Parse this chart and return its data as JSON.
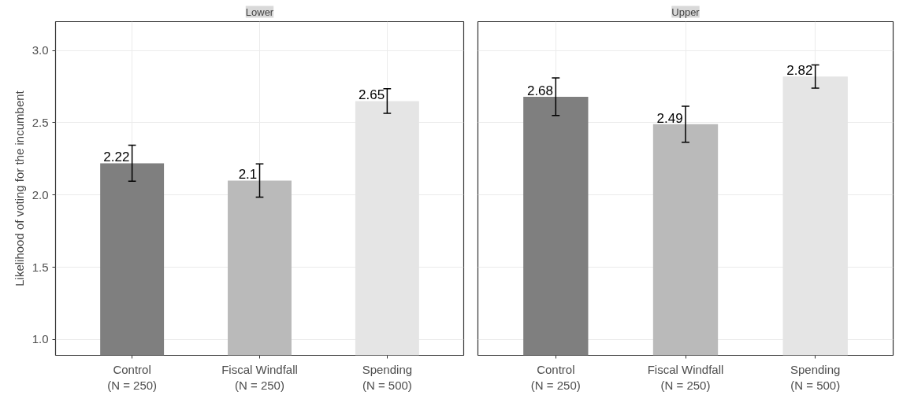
{
  "chart_data": [
    {
      "type": "bar",
      "title": "Lower",
      "ylabel": "Likelihood of voting for the incumbent",
      "categories": [
        "Control\n(N = 250)",
        "Fiscal Windfall\n(N = 250)",
        "Spending\n(N = 500)"
      ],
      "values": [
        2.22,
        2.1,
        2.65
      ],
      "errors": [
        0.125,
        0.115,
        0.085
      ],
      "colors": [
        "#7f7f7f",
        "#bababa",
        "#e5e5e5"
      ],
      "ylim": [
        0.89,
        3.2
      ],
      "yticks": [
        {
          "value": 1,
          "label": "1.0"
        },
        {
          "value": 1.5,
          "label": "1.5"
        },
        {
          "value": 2,
          "label": "2.0"
        },
        {
          "value": 2.5,
          "label": "2.5"
        },
        {
          "value": 3,
          "label": "3.0"
        }
      ],
      "grid": true,
      "data_labels": true
    },
    {
      "type": "bar",
      "title": "Upper",
      "categories": [
        "Control\n(N = 250)",
        "Fiscal Windfall\n(N = 250)",
        "Spending\n(N = 500)"
      ],
      "values": [
        2.68,
        2.49,
        2.82
      ],
      "errors": [
        0.13,
        0.125,
        0.08
      ],
      "colors": [
        "#7f7f7f",
        "#bababa",
        "#e5e5e5"
      ],
      "ylim": [
        0.89,
        3.2
      ],
      "yticks": [
        1,
        1.5,
        2,
        2.5,
        3
      ],
      "grid": true,
      "data_labels": true,
      "tick_labels": "x"
    }
  ]
}
